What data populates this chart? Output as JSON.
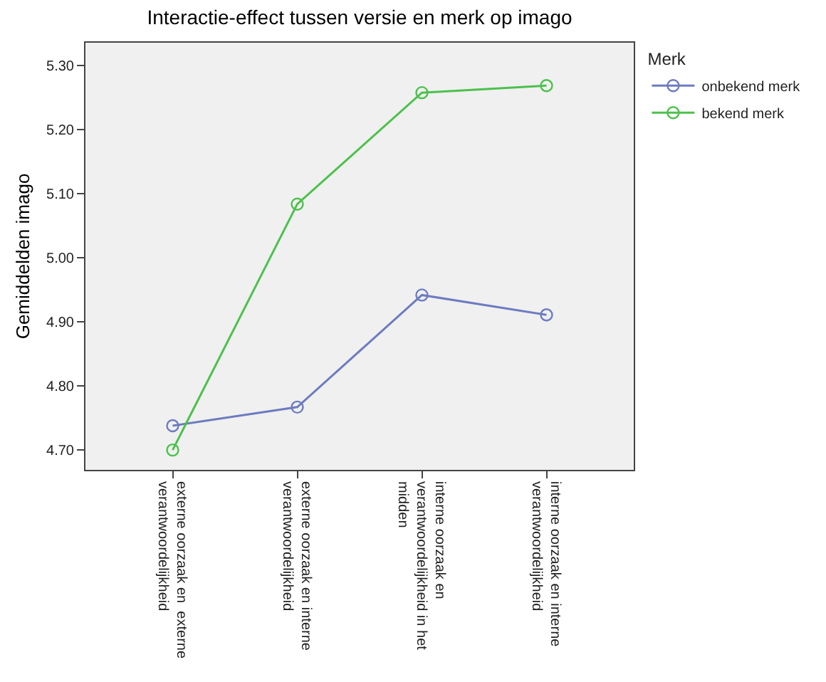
{
  "chart_data": {
    "type": "line",
    "title": "Interactie-effect tussen versie en merk op imago",
    "ylabel": "Gemiddelden imago",
    "legend_title": "Merk",
    "categories": [
      "externe oorzaak en  externe\nverantwoordelijkheid",
      "externe oorzaak en interne\nverantwoordelijkheid",
      "interne oorzaak en\nverantwoordelijkheid in het\nmidden",
      "interne oorzaak en interne\nverantwoordelijkheid"
    ],
    "series": [
      {
        "name": "onbekend merk",
        "color": "#6d7cc0",
        "values": [
          4.738,
          4.767,
          4.942,
          4.911
        ]
      },
      {
        "name": "bekend merk",
        "color": "#4cc14c",
        "values": [
          4.7,
          5.084,
          5.258,
          5.269
        ]
      }
    ],
    "ylim": [
      4.669,
      5.336
    ],
    "yticks": [
      {
        "value": 4.7,
        "label": "4.70"
      },
      {
        "value": 4.8,
        "label": "4.80"
      },
      {
        "value": 4.9,
        "label": "4.90"
      },
      {
        "value": 5.0,
        "label": "5.00"
      },
      {
        "value": 5.1,
        "label": "5.10"
      },
      {
        "value": 5.2,
        "label": "5.20"
      },
      {
        "value": 5.3,
        "label": "5.30"
      }
    ],
    "grid": false,
    "legend": "top right",
    "marker": "circle",
    "line_style": "solid"
  }
}
